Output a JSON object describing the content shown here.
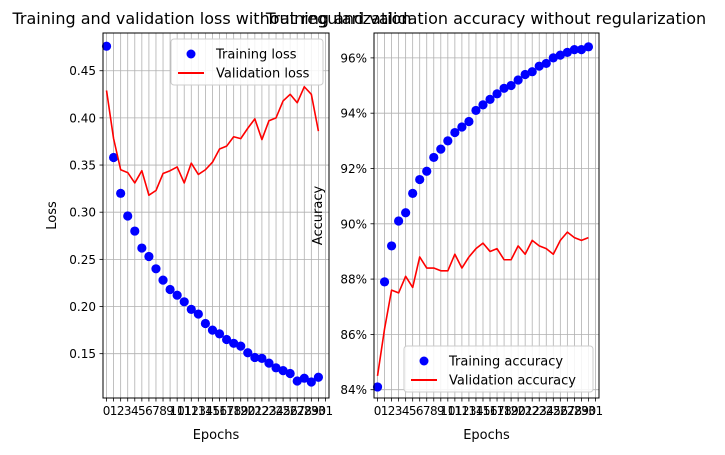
{
  "chart_data": [
    {
      "type": "line",
      "title": "Training and validation loss without regularization",
      "xlabel": "Epochs",
      "ylabel": "Loss",
      "xlim": [
        -0.5,
        31.5
      ],
      "ylim": [
        0.103,
        0.49
      ],
      "xticks": [
        0,
        1,
        2,
        3,
        4,
        5,
        6,
        7,
        8,
        9,
        10,
        11,
        12,
        13,
        14,
        15,
        16,
        17,
        18,
        19,
        20,
        21,
        22,
        23,
        24,
        25,
        26,
        27,
        28,
        29,
        30,
        31
      ],
      "yticks": [
        0.15,
        0.2,
        0.25,
        0.3,
        0.35,
        0.4,
        0.45
      ],
      "ytick_labels": [
        "0.15",
        "0.20",
        "0.25",
        "0.30",
        "0.35",
        "0.40",
        "0.45"
      ],
      "grid": true,
      "legend": "top-right",
      "x": [
        0,
        1,
        2,
        3,
        4,
        5,
        6,
        7,
        8,
        9,
        10,
        11,
        12,
        13,
        14,
        15,
        16,
        17,
        18,
        19,
        20,
        21,
        22,
        23,
        24,
        25,
        26,
        27,
        28,
        29,
        30
      ],
      "series": [
        {
          "name": "Training loss",
          "style": "points",
          "color": "#0000ff",
          "values": [
            0.476,
            0.358,
            0.32,
            0.296,
            0.28,
            0.262,
            0.253,
            0.24,
            0.228,
            0.218,
            0.212,
            0.205,
            0.197,
            0.192,
            0.182,
            0.175,
            0.171,
            0.165,
            0.161,
            0.158,
            0.151,
            0.146,
            0.145,
            0.14,
            0.135,
            0.132,
            0.129,
            0.121,
            0.124,
            0.12,
            0.125
          ]
        },
        {
          "name": "Validation loss",
          "style": "line",
          "color": "#ff0000",
          "values": [
            0.429,
            0.378,
            0.345,
            0.342,
            0.331,
            0.344,
            0.318,
            0.323,
            0.341,
            0.344,
            0.348,
            0.331,
            0.352,
            0.34,
            0.345,
            0.353,
            0.367,
            0.37,
            0.38,
            0.378,
            0.389,
            0.399,
            0.377,
            0.397,
            0.4,
            0.418,
            0.425,
            0.416,
            0.433,
            0.425,
            0.386
          ]
        }
      ]
    },
    {
      "type": "line",
      "title": "Training and validation accuracy without regularization",
      "xlabel": "Epochs",
      "ylabel": "Accuracy",
      "xlim": [
        -0.5,
        31.5
      ],
      "ylim": [
        83.7,
        96.9
      ],
      "xticks": [
        0,
        1,
        2,
        3,
        4,
        5,
        6,
        7,
        8,
        9,
        10,
        11,
        12,
        13,
        14,
        15,
        16,
        17,
        18,
        19,
        20,
        21,
        22,
        23,
        24,
        25,
        26,
        27,
        28,
        29,
        30,
        31
      ],
      "yticks": [
        84,
        86,
        88,
        90,
        92,
        94,
        96
      ],
      "ytick_labels": [
        "84%",
        "86%",
        "88%",
        "90%",
        "92%",
        "94%",
        "96%"
      ],
      "grid": true,
      "legend": "bottom-right",
      "x": [
        0,
        1,
        2,
        3,
        4,
        5,
        6,
        7,
        8,
        9,
        10,
        11,
        12,
        13,
        14,
        15,
        16,
        17,
        18,
        19,
        20,
        21,
        22,
        23,
        24,
        25,
        26,
        27,
        28,
        29,
        30
      ],
      "series": [
        {
          "name": "Training accuracy",
          "style": "points",
          "color": "#0000ff",
          "values": [
            84.1,
            87.9,
            89.2,
            90.1,
            90.4,
            91.1,
            91.6,
            91.9,
            92.4,
            92.7,
            93.0,
            93.3,
            93.5,
            93.7,
            94.1,
            94.3,
            94.5,
            94.7,
            94.9,
            95.0,
            95.2,
            95.4,
            95.5,
            95.7,
            95.8,
            96.0,
            96.1,
            96.2,
            96.3,
            96.3,
            96.4
          ]
        },
        {
          "name": "Validation accuracy",
          "style": "line",
          "color": "#ff0000",
          "values": [
            84.5,
            86.2,
            87.6,
            87.5,
            88.1,
            87.7,
            88.8,
            88.4,
            88.4,
            88.3,
            88.3,
            88.9,
            88.4,
            88.8,
            89.1,
            89.3,
            89.0,
            89.1,
            88.7,
            88.7,
            89.2,
            88.9,
            89.4,
            89.2,
            89.1,
            88.9,
            89.4,
            89.7,
            89.5,
            89.4,
            89.5
          ]
        }
      ]
    }
  ]
}
